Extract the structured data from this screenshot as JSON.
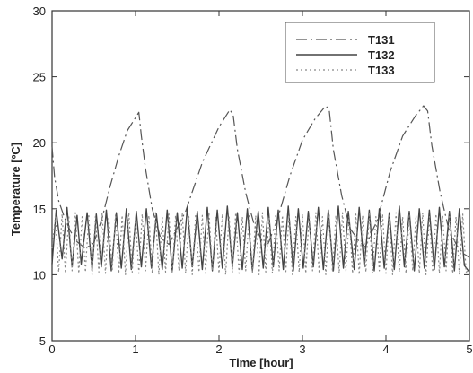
{
  "chart_data": {
    "type": "line",
    "title": "",
    "xlabel": "Time [hour]",
    "ylabel": "Temperature [ºC]",
    "xlim": [
      0,
      5
    ],
    "ylim": [
      5,
      30
    ],
    "x_ticks": [
      0,
      1,
      2,
      3,
      4,
      5
    ],
    "y_ticks": [
      5,
      10,
      15,
      20,
      25,
      30
    ],
    "grid": false,
    "legend_position": "top-right",
    "series": [
      {
        "name": "T131",
        "style": "dash-dot",
        "color": "#555555",
        "x": [
          0.0,
          0.03,
          0.08,
          0.15,
          0.22,
          0.3,
          0.4,
          0.5,
          0.6,
          0.7,
          0.8,
          0.9,
          1.0,
          1.04,
          1.07,
          1.12,
          1.2,
          1.3,
          1.4,
          1.6,
          1.8,
          2.0,
          2.13,
          2.17,
          2.22,
          2.32,
          2.42,
          2.52,
          2.58,
          2.7,
          2.85,
          3.0,
          3.15,
          3.28,
          3.32,
          3.37,
          3.47,
          3.57,
          3.67,
          3.75,
          3.9,
          4.05,
          4.2,
          4.35,
          4.45,
          4.5,
          4.55,
          4.65,
          4.75,
          4.85,
          4.93,
          5.0
        ],
        "y": [
          19.7,
          17.4,
          15.6,
          14.3,
          13.3,
          12.5,
          12.0,
          12.4,
          14.3,
          16.8,
          19.0,
          20.9,
          21.9,
          22.3,
          20.5,
          18.0,
          15.0,
          12.8,
          12.3,
          14.8,
          18.5,
          21.2,
          22.5,
          22.1,
          19.5,
          16.2,
          13.8,
          12.5,
          12.2,
          14.2,
          17.5,
          20.2,
          21.8,
          22.8,
          22.5,
          19.5,
          16.0,
          13.5,
          12.6,
          12.1,
          14.2,
          17.8,
          20.5,
          22.0,
          22.8,
          22.4,
          19.8,
          16.2,
          13.5,
          12.2,
          11.6,
          11.3
        ]
      },
      {
        "name": "T132",
        "style": "solid",
        "color": "#444444",
        "x": [
          0.0,
          0.05,
          0.12,
          0.18,
          0.24,
          0.3,
          0.35,
          0.42,
          0.48,
          0.53,
          0.59,
          0.65,
          0.71,
          0.77,
          0.83,
          0.89,
          0.95,
          1.01,
          1.07,
          1.13,
          1.19,
          1.25,
          1.32,
          1.38,
          1.44,
          1.5,
          1.56,
          1.62,
          1.68,
          1.74,
          1.8,
          1.86,
          1.92,
          1.98,
          2.04,
          2.1,
          2.16,
          2.22,
          2.28,
          2.34,
          2.4,
          2.47,
          2.53,
          2.59,
          2.65,
          2.71,
          2.77,
          2.83,
          2.89,
          2.95,
          3.01,
          3.07,
          3.13,
          3.19,
          3.25,
          3.31,
          3.37,
          3.43,
          3.49,
          3.55,
          3.62,
          3.68,
          3.74,
          3.8,
          3.86,
          3.92,
          3.98,
          4.04,
          4.1,
          4.16,
          4.22,
          4.28,
          4.34,
          4.4,
          4.46,
          4.52,
          4.58,
          4.64,
          4.7,
          4.76,
          4.82,
          4.88,
          4.94,
          5.0
        ],
        "y": [
          10.8,
          14.9,
          11.2,
          15.1,
          10.6,
          14.5,
          10.8,
          14.7,
          10.4,
          14.6,
          10.6,
          14.9,
          10.3,
          14.7,
          10.5,
          15.0,
          10.4,
          14.8,
          10.6,
          15.0,
          10.5,
          14.6,
          10.4,
          14.9,
          10.3,
          14.7,
          10.5,
          15.1,
          10.6,
          14.8,
          10.4,
          15.1,
          10.3,
          14.9,
          10.5,
          15.2,
          10.6,
          14.7,
          10.4,
          15.0,
          10.3,
          14.8,
          10.5,
          15.1,
          10.6,
          14.9,
          10.4,
          15.2,
          10.3,
          15.0,
          10.5,
          14.8,
          10.6,
          15.1,
          10.4,
          14.9,
          10.3,
          15.2,
          10.5,
          14.8,
          10.4,
          15.1,
          10.6,
          14.9,
          10.3,
          15.0,
          10.5,
          14.7,
          10.4,
          15.2,
          10.6,
          14.8,
          10.3,
          15.0,
          10.5,
          14.9,
          10.4,
          15.1,
          10.6,
          14.8,
          10.3,
          15.0,
          10.7,
          10.2
        ]
      },
      {
        "name": "T133",
        "style": "dotted",
        "color": "#888888",
        "x": [
          0.0,
          0.04,
          0.08,
          0.12,
          0.16,
          0.2,
          0.24,
          0.28,
          0.32,
          0.36,
          0.4,
          0.44,
          0.48,
          0.52,
          0.56,
          0.6,
          0.64,
          0.68,
          0.72,
          0.76,
          0.8,
          0.84,
          0.88,
          0.92,
          0.96,
          1.0,
          1.04,
          1.08,
          1.12,
          1.16,
          1.2,
          1.24,
          1.28,
          1.32,
          1.36,
          1.4,
          1.44,
          1.48,
          1.52,
          1.56,
          1.6,
          1.64,
          1.68,
          1.72,
          1.76,
          1.8,
          1.84,
          1.88,
          1.92,
          1.96,
          2.0,
          2.04,
          2.08,
          2.12,
          2.16,
          2.2,
          2.24,
          2.28,
          2.32,
          2.36,
          2.4,
          2.44,
          2.48,
          2.52,
          2.56,
          2.6,
          2.64,
          2.68,
          2.72,
          2.76,
          2.8,
          2.84,
          2.88,
          2.92,
          2.96,
          3.0,
          3.04,
          3.08,
          3.12,
          3.16,
          3.2,
          3.24,
          3.28,
          3.32,
          3.36,
          3.4,
          3.44,
          3.48,
          3.52,
          3.56,
          3.6,
          3.64,
          3.68,
          3.72,
          3.76,
          3.8,
          3.84,
          3.88,
          3.92,
          3.96,
          4.0,
          4.04,
          4.08,
          4.12,
          4.16,
          4.2,
          4.24,
          4.28,
          4.32,
          4.36,
          4.4,
          4.44,
          4.48,
          4.52,
          4.56,
          4.6,
          4.64,
          4.68,
          4.72,
          4.76,
          4.8,
          4.84,
          4.88,
          4.92,
          4.96,
          5.0
        ],
        "y": [
          12.0,
          14.4,
          10.2,
          14.6,
          10.1,
          14.5,
          10.3,
          14.7,
          10.1,
          14.4,
          10.2,
          14.6,
          10.0,
          14.5,
          10.2,
          14.7,
          10.1,
          14.4,
          10.3,
          14.6,
          10.1,
          14.5,
          10.0,
          14.7,
          10.2,
          14.4,
          10.1,
          14.6,
          10.3,
          14.5,
          10.1,
          14.7,
          10.0,
          14.4,
          10.2,
          14.6,
          10.1,
          14.5,
          10.3,
          14.7,
          10.1,
          14.4,
          10.0,
          14.6,
          10.2,
          14.5,
          10.1,
          14.7,
          10.3,
          14.4,
          10.1,
          14.6,
          10.0,
          14.5,
          10.2,
          14.7,
          10.1,
          14.4,
          10.3,
          14.6,
          10.1,
          14.5,
          10.0,
          14.7,
          10.2,
          14.4,
          10.1,
          14.6,
          10.3,
          14.5,
          10.1,
          14.7,
          10.0,
          14.4,
          10.2,
          14.6,
          10.1,
          14.5,
          10.3,
          14.7,
          10.1,
          14.4,
          10.0,
          14.6,
          10.2,
          14.5,
          10.1,
          14.7,
          10.3,
          14.4,
          10.1,
          14.6,
          10.0,
          14.5,
          10.2,
          14.7,
          10.1,
          14.4,
          10.3,
          14.6,
          10.1,
          14.5,
          10.0,
          14.7,
          10.2,
          14.4,
          10.1,
          14.6,
          10.3,
          14.5,
          10.1,
          14.7,
          10.0,
          14.4,
          10.2,
          14.6,
          10.1,
          14.5,
          10.3,
          14.7,
          10.1,
          14.4,
          10.0,
          14.6,
          10.2,
          10.4
        ]
      }
    ]
  }
}
